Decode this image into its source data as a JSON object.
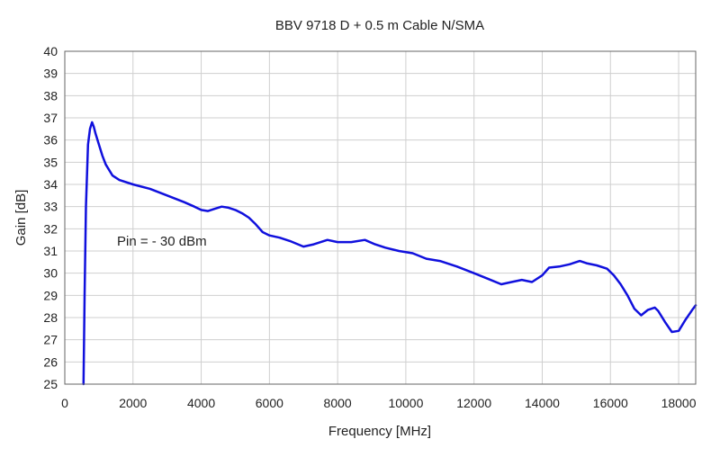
{
  "chart_data": {
    "type": "line",
    "title": "BBV 9718 D + 0.5 m Cable N/SMA",
    "xlabel": "Frequency [MHz]",
    "ylabel": "Gain [dB]",
    "xlim": [
      0,
      18500
    ],
    "ylim": [
      25,
      40
    ],
    "xticks": [
      0,
      2000,
      4000,
      6000,
      8000,
      10000,
      12000,
      14000,
      16000,
      18000
    ],
    "yticks": [
      25,
      26,
      27,
      28,
      29,
      30,
      31,
      32,
      33,
      34,
      35,
      36,
      37,
      38,
      39,
      40
    ],
    "grid": true,
    "annotation": "Pin = - 30 dBm",
    "line_color": "#1010dd",
    "series": [
      {
        "x": [
          550,
          580,
          620,
          680,
          740,
          800,
          850,
          900,
          1000,
          1100,
          1200,
          1400,
          1600,
          2000,
          2500,
          3000,
          3500,
          3800,
          4000,
          4200,
          4400,
          4600,
          4800,
          5000,
          5200,
          5400,
          5600,
          5800,
          6000,
          6300,
          6600,
          7000,
          7300,
          7700,
          8000,
          8400,
          8800,
          9100,
          9400,
          9800,
          10200,
          10600,
          11000,
          11500,
          12000,
          12400,
          12800,
          13100,
          13400,
          13700,
          14000,
          14200,
          14500,
          14800,
          15100,
          15300,
          15600,
          15900,
          16100,
          16300,
          16500,
          16700,
          16900,
          17100,
          17300,
          17400,
          17600,
          17800,
          18000,
          18200,
          18400,
          18500
        ],
        "y": [
          25.0,
          29.0,
          33.0,
          35.8,
          36.5,
          36.8,
          36.6,
          36.3,
          35.8,
          35.3,
          34.9,
          34.4,
          34.2,
          34.0,
          33.8,
          33.5,
          33.2,
          33.0,
          32.85,
          32.8,
          32.9,
          33.0,
          32.95,
          32.85,
          32.7,
          32.5,
          32.2,
          31.85,
          31.7,
          31.6,
          31.45,
          31.2,
          31.3,
          31.5,
          31.4,
          31.4,
          31.5,
          31.3,
          31.15,
          31.0,
          30.9,
          30.65,
          30.55,
          30.3,
          30.0,
          29.75,
          29.5,
          29.6,
          29.7,
          29.6,
          29.9,
          30.25,
          30.3,
          30.4,
          30.55,
          30.45,
          30.35,
          30.2,
          29.9,
          29.5,
          29.0,
          28.4,
          28.1,
          28.35,
          28.45,
          28.3,
          27.8,
          27.35,
          27.4,
          27.9,
          28.35,
          28.55
        ]
      }
    ]
  }
}
